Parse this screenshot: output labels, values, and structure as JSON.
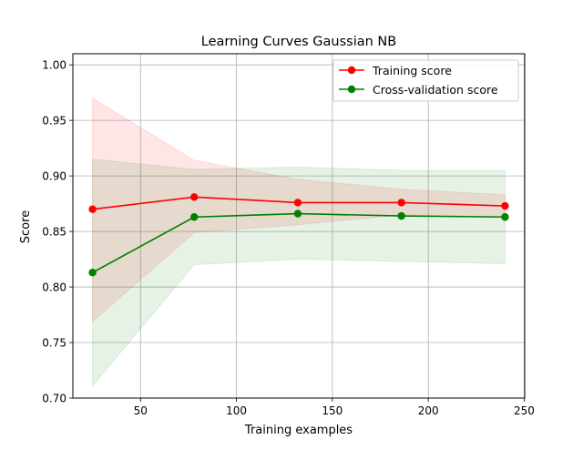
{
  "chart_data": {
    "type": "line",
    "title": "Learning Curves Gaussian NB",
    "xlabel": "Training examples",
    "ylabel": "Score",
    "xlim": [
      14.75,
      250.25
    ],
    "ylim": [
      0.7,
      1.01
    ],
    "xticks": [
      50,
      100,
      150,
      200,
      250
    ],
    "yticks": [
      0.7,
      0.75,
      0.8,
      0.85,
      0.9,
      0.95,
      1.0
    ],
    "ytick_labels": [
      "0.70",
      "0.75",
      "0.80",
      "0.85",
      "0.90",
      "0.95",
      "1.00"
    ],
    "grid": true,
    "legend_position": "top-right",
    "x": [
      25,
      78,
      132,
      186,
      240
    ],
    "series": [
      {
        "name": "Training score",
        "color": "#ff0000",
        "values": [
          0.87,
          0.881,
          0.876,
          0.876,
          0.873
        ],
        "band_lower": [
          0.769,
          0.849,
          0.856,
          0.865,
          0.863
        ],
        "band_upper": [
          0.97,
          0.914,
          0.897,
          0.888,
          0.883
        ]
      },
      {
        "name": "Cross-validation score",
        "color": "#008000",
        "values": [
          0.813,
          0.863,
          0.866,
          0.864,
          0.863
        ],
        "band_lower": [
          0.711,
          0.82,
          0.825,
          0.823,
          0.821
        ],
        "band_upper": [
          0.915,
          0.906,
          0.908,
          0.905,
          0.905
        ]
      }
    ]
  }
}
